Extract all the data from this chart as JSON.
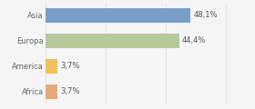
{
  "categories": [
    "Africa",
    "America",
    "Europa",
    "Asia"
  ],
  "values": [
    3.7,
    3.7,
    44.4,
    48.1
  ],
  "bar_colors": [
    "#e8a87c",
    "#f0c060",
    "#b5c99a",
    "#7b9ec9"
  ],
  "labels": [
    "3,7%",
    "3,7%",
    "44,4%",
    "48,1%"
  ],
  "xlim": [
    0,
    68
  ],
  "background_color": "#f5f5f5",
  "bar_height": 0.58,
  "label_fontsize": 6.0,
  "tick_fontsize": 6.0,
  "label_color": "#555555",
  "tick_color": "#666666",
  "grid_color": "#dddddd"
}
